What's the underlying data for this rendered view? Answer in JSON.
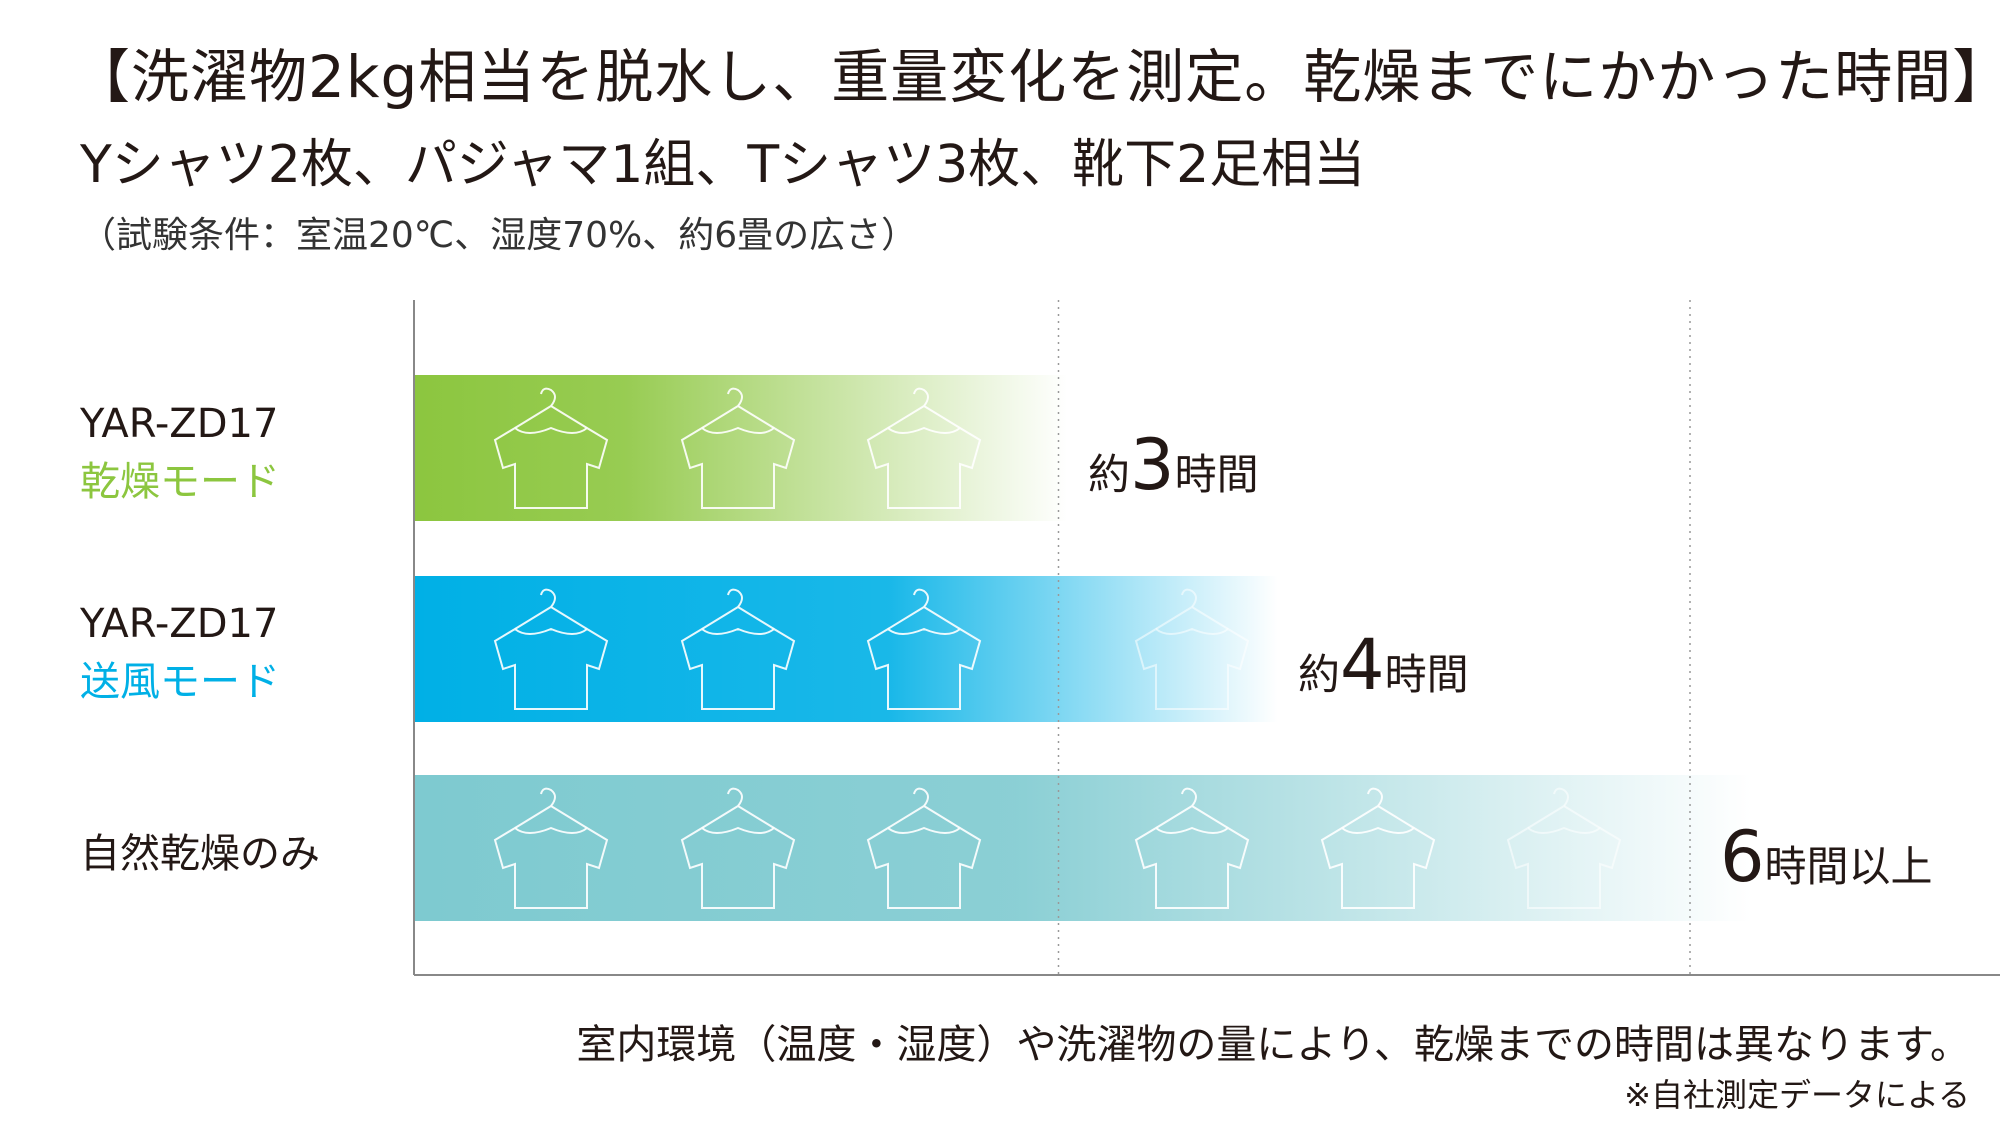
{
  "header": {
    "title": "【洗濯物2kg相当を脱水し、重量変化を測定。乾燥までにかかった時間】",
    "subtitle": "Yシャツ2枚、パジャマ1組、Tシャツ3枚、靴下2足相当",
    "conditions": "（試験条件：室温20℃、湿度70%、約6畳の広さ）"
  },
  "rows": [
    {
      "model": "YAR-ZD17",
      "mode": "乾燥モード",
      "mode_color": "#8cc63f",
      "value_prefix": "約",
      "value_number": "3",
      "value_suffix": "時間"
    },
    {
      "model": "YAR-ZD17",
      "mode": "送風モード",
      "mode_color": "#00b0e6",
      "value_prefix": "約",
      "value_number": "4",
      "value_suffix": "時間"
    },
    {
      "model": "",
      "mode": "自然乾燥のみ",
      "mode_color": "#231815",
      "value_prefix": "",
      "value_number": "6",
      "value_suffix": "時間以上"
    }
  ],
  "footer": {
    "disclaimer": "室内環境（温度・湿度）や洗濯物の量により、乾燥までの時間は異なります。",
    "source": "※自社測定データによる"
  },
  "colors": {
    "dry_mode": "#8cc63f",
    "fan_mode": "#00b0e6",
    "natural": "#7ecad0",
    "axis": "#888888"
  },
  "icons": {
    "bar_pattern": "shirt-on-hanger-icon"
  },
  "chart_data": {
    "type": "bar",
    "orientation": "horizontal",
    "categories": [
      "YAR-ZD17 乾燥モード",
      "YAR-ZD17 送風モード",
      "自然乾燥のみ"
    ],
    "values": [
      3,
      4,
      6
    ],
    "value_labels": [
      "約3時間",
      "約4時間",
      "6時間以上"
    ],
    "unit": "時間",
    "xlim": [
      0,
      7.5
    ],
    "gridlines_at": [
      3,
      6
    ],
    "grid": "dotted vertical",
    "bar_colors": [
      "#8cc63f",
      "#00b0e6",
      "#7ecad0"
    ],
    "icons_per_bar": [
      3,
      4,
      6
    ]
  }
}
